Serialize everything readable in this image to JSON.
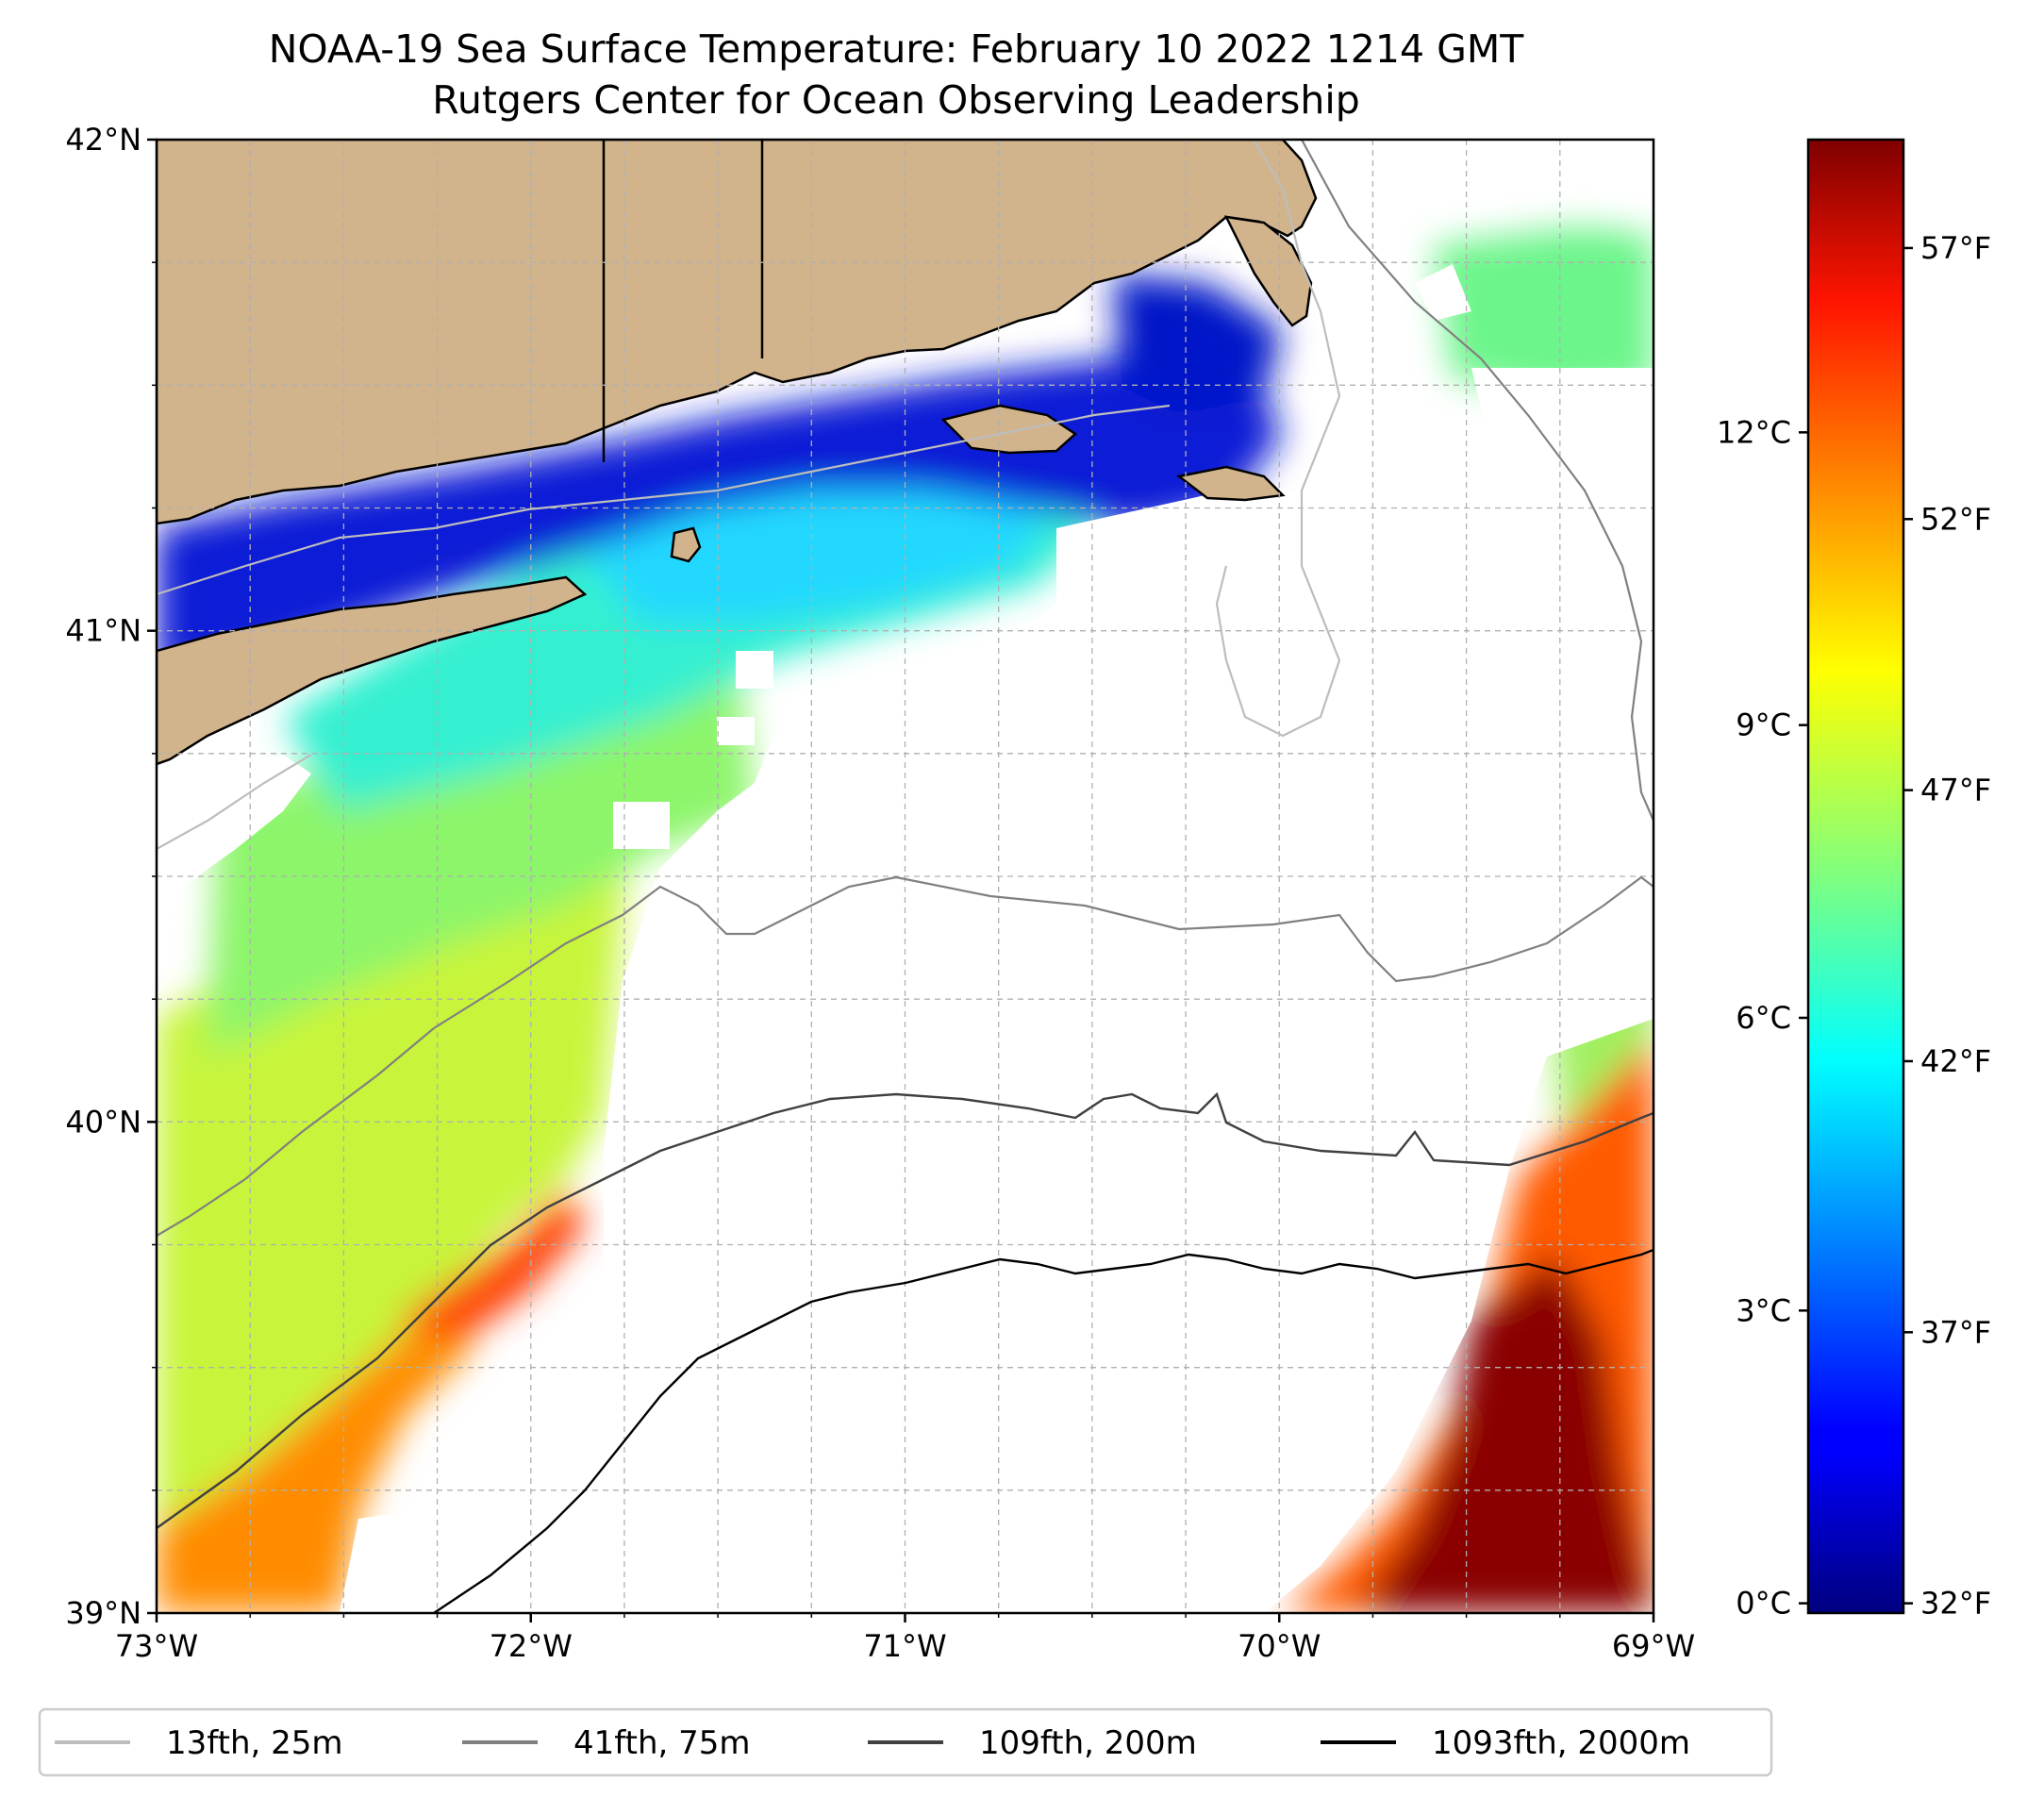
{
  "title_line1": "NOAA-19 Sea Surface Temperature: February 10 2022 1214 GMT",
  "title_line2": "Rutgers Center for Ocean Observing Leadership",
  "map": {
    "lon_range": [
      -73,
      -69
    ],
    "lat_range": [
      39,
      42
    ],
    "gridlines": true,
    "land_color": "#d2b48c",
    "lon_ticks": [
      {
        "value": -73,
        "label": "73°W"
      },
      {
        "value": -72,
        "label": "72°W"
      },
      {
        "value": -71,
        "label": "71°W"
      },
      {
        "value": -70,
        "label": "70°W"
      },
      {
        "value": -69,
        "label": "69°W"
      }
    ],
    "lat_ticks": [
      {
        "value": 42,
        "label": "42°N"
      },
      {
        "value": 41,
        "label": "41°N"
      },
      {
        "value": 40,
        "label": "40°N"
      },
      {
        "value": 39,
        "label": "39°N"
      }
    ]
  },
  "colorbar": {
    "colormap": "jet",
    "range_c": [
      -0.1,
      15.0
    ],
    "celsius_ticks": [
      {
        "value": 0,
        "label": "0°C"
      },
      {
        "value": 3,
        "label": "3°C"
      },
      {
        "value": 6,
        "label": "6°C"
      },
      {
        "value": 9,
        "label": "9°C"
      },
      {
        "value": 12,
        "label": "12°C"
      }
    ],
    "fahrenheit_ticks": [
      {
        "value": 32,
        "label": "32°F"
      },
      {
        "value": 37,
        "label": "37°F"
      },
      {
        "value": 42,
        "label": "42°F"
      },
      {
        "value": 47,
        "label": "47°F"
      },
      {
        "value": 52,
        "label": "52°F"
      },
      {
        "value": 57,
        "label": "57°F"
      }
    ]
  },
  "legend": {
    "placement": "bottom",
    "items": [
      {
        "label": "13fth, 25m",
        "color": "#bdbdbd"
      },
      {
        "label": "41fth, 75m",
        "color": "#808080"
      },
      {
        "label": "109fth, 200m",
        "color": "#404040"
      },
      {
        "label": "1093fth, 2000m",
        "color": "#000000"
      }
    ]
  }
}
